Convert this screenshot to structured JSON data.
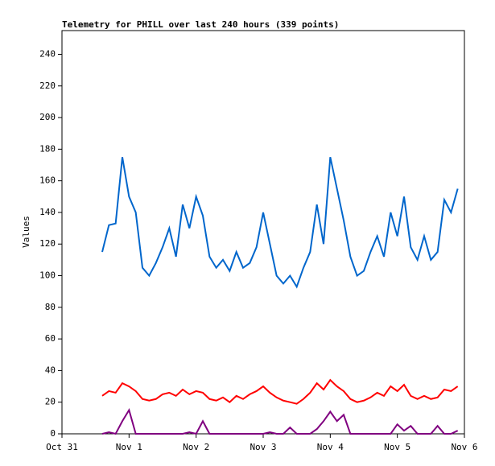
{
  "chart_data": {
    "type": "line",
    "title": "Telemetry for PHILL over last 240 hours (339 points)",
    "ylabel": "Values",
    "x": [
      0.6,
      0.7,
      0.8,
      0.9,
      1.0,
      1.1,
      1.2,
      1.3,
      1.4,
      1.5,
      1.6,
      1.7,
      1.8,
      1.9,
      2.0,
      2.1,
      2.2,
      2.3,
      2.4,
      2.5,
      2.6,
      2.7,
      2.8,
      2.9,
      3.0,
      3.1,
      3.2,
      3.3,
      3.4,
      3.5,
      3.6,
      3.7,
      3.8,
      3.9,
      4.0,
      4.1,
      4.2,
      4.3,
      4.4,
      4.5,
      4.6,
      4.7,
      4.8,
      4.9,
      5.0,
      5.1,
      5.2,
      5.3,
      5.4,
      5.5,
      5.6,
      5.7,
      5.8,
      5.9
    ],
    "series": [
      {
        "color": "#0066cc",
        "values": [
          115,
          132,
          133,
          175,
          150,
          140,
          105,
          100,
          108,
          118,
          130,
          112,
          145,
          130,
          150,
          138,
          112,
          105,
          110,
          103,
          115,
          105,
          108,
          118,
          140,
          120,
          100,
          95,
          100,
          93,
          105,
          115,
          145,
          120,
          175,
          155,
          135,
          112,
          100,
          103,
          115,
          125,
          112,
          140,
          125,
          150,
          118,
          110,
          125,
          110,
          115,
          148,
          140,
          155
        ]
      },
      {
        "color": "#ff0000",
        "values": [
          24,
          27,
          26,
          32,
          30,
          27,
          22,
          21,
          22,
          25,
          26,
          24,
          28,
          25,
          27,
          26,
          22,
          21,
          23,
          20,
          24,
          22,
          25,
          27,
          30,
          26,
          23,
          21,
          20,
          19,
          22,
          26,
          32,
          28,
          34,
          30,
          27,
          22,
          20,
          21,
          23,
          26,
          24,
          30,
          27,
          31,
          24,
          22,
          24,
          22,
          23,
          28,
          27,
          30
        ]
      },
      {
        "color": "#800080",
        "values": [
          0,
          1,
          0,
          8,
          15,
          0,
          0,
          0,
          0,
          0,
          0,
          0,
          0,
          1,
          0,
          8,
          0,
          0,
          0,
          0,
          0,
          0,
          0,
          0,
          0,
          1,
          0,
          0,
          4,
          0,
          0,
          0,
          3,
          8,
          14,
          8,
          12,
          0,
          0,
          0,
          0,
          0,
          0,
          0,
          6,
          2,
          5,
          0,
          0,
          0,
          5,
          0,
          0,
          2
        ]
      }
    ],
    "xlim": [
      0,
      6
    ],
    "xticks": [
      {
        "value": 0,
        "label": "Oct 31"
      },
      {
        "value": 1,
        "label": "Nov 1"
      },
      {
        "value": 2,
        "label": "Nov 2"
      },
      {
        "value": 3,
        "label": "Nov 3"
      },
      {
        "value": 4,
        "label": "Nov 4"
      },
      {
        "value": 5,
        "label": "Nov 5"
      },
      {
        "value": 6,
        "label": "Nov 6"
      }
    ],
    "ylim": [
      0,
      255
    ],
    "yticks": [
      0,
      20,
      40,
      60,
      80,
      100,
      120,
      140,
      160,
      180,
      200,
      220,
      240
    ]
  }
}
